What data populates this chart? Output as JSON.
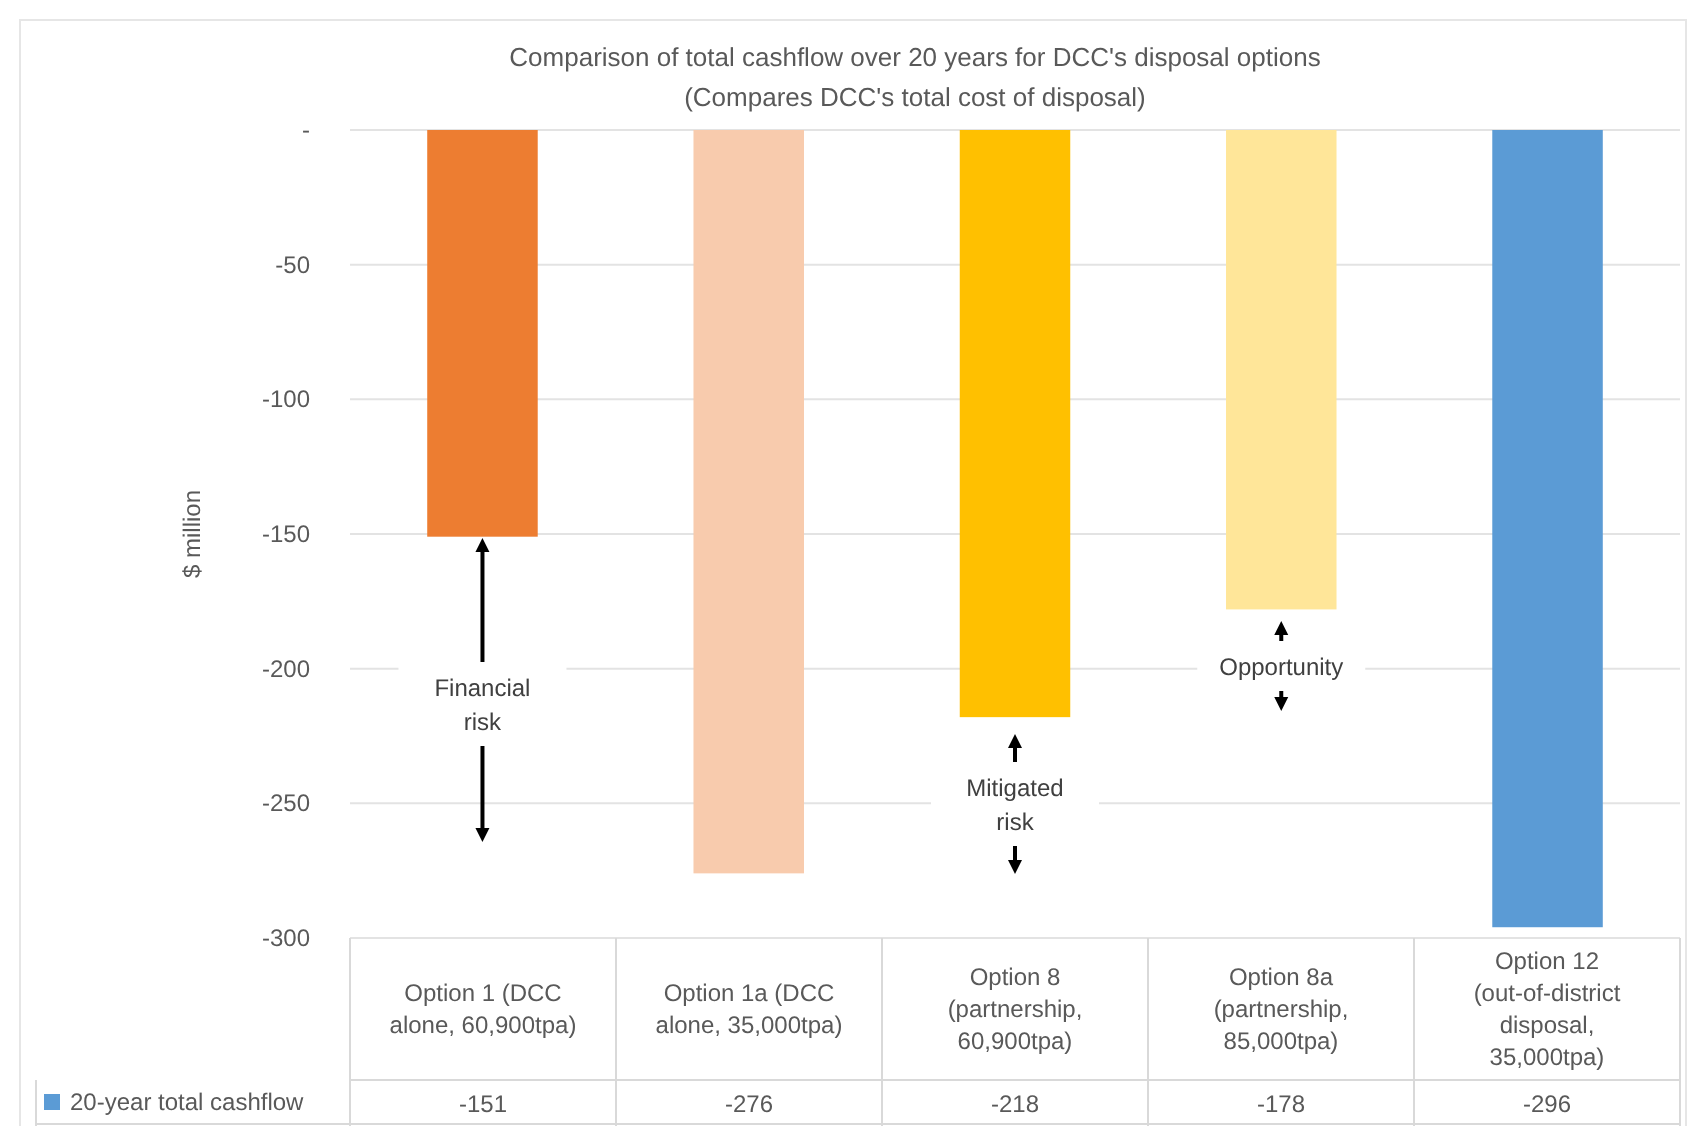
{
  "chart_data": {
    "type": "bar",
    "title": "Comparison of total cashflow over 20 years for DCC's disposal options",
    "subtitle": "(Compares DCC's total cost of disposal)",
    "ylabel": "$ million",
    "categories": [
      "Option 1 (DCC alone, 60,900tpa)",
      "Option 1a (DCC alone, 35,000tpa)",
      "Option 8 (partnership, 60,900tpa)",
      "Option 8a (partnership, 85,000tpa)",
      "Option 12 (out-of-district disposal, 35,000tpa)"
    ],
    "series": [
      {
        "name": "20-year total cashflow",
        "color": "#5b9bd5",
        "colors": [
          "#ed7d31",
          "#f8cbad",
          "#ffc000",
          "#ffe699",
          "#5b9bd5"
        ],
        "values": [
          -151,
          -276,
          -218,
          -178,
          -296
        ]
      }
    ],
    "ylim": [
      -300,
      0
    ],
    "yticks": [
      {
        "value": 0,
        "label": "-"
      },
      -50,
      -100,
      -150,
      -200,
      -250,
      -300
    ],
    "grid": "y",
    "legend": "bottom",
    "data_labels": true,
    "annotations": [
      "Financial risk",
      "Mitigated risk",
      "Opportunity"
    ]
  }
}
